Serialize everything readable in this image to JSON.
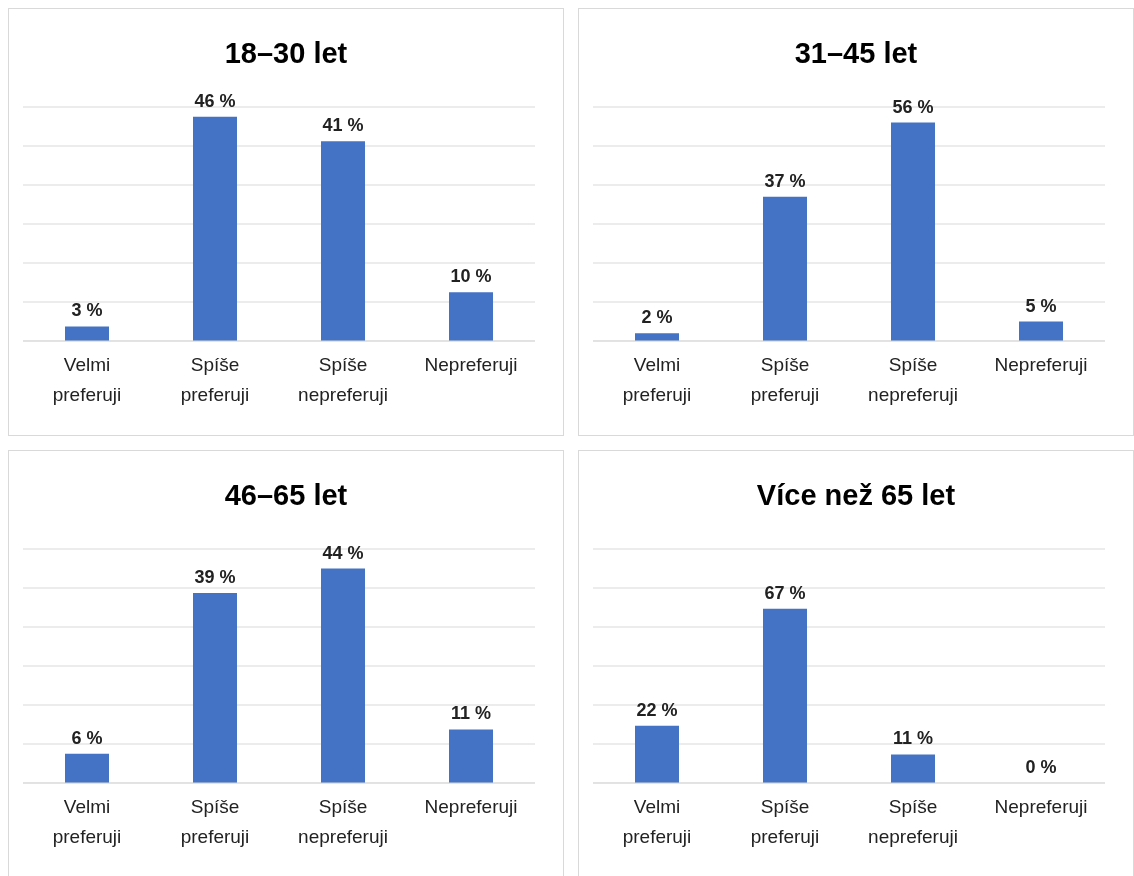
{
  "chart_data": [
    {
      "type": "bar",
      "title": "18–30 let",
      "categories": [
        "Velmi preferuji",
        "Spíše preferuji",
        "Spíše nepreferuji",
        "Nepreferuji"
      ],
      "values": [
        3,
        46,
        41,
        10
      ],
      "value_labels": [
        "3 %",
        "46 %",
        "41 %",
        "10 %"
      ],
      "color": "#4472c4",
      "grid": "y",
      "tick_labels": "x",
      "legend": false
    },
    {
      "type": "bar",
      "title": "31–45 let",
      "categories": [
        "Velmi preferuji",
        "Spíše preferuji",
        "Spíše nepreferuji",
        "Nepreferuji"
      ],
      "values": [
        2,
        37,
        56,
        5
      ],
      "value_labels": [
        "2 %",
        "37 %",
        "56 %",
        "5 %"
      ],
      "color": "#4472c4",
      "grid": "y",
      "tick_labels": "x",
      "legend": false
    },
    {
      "type": "bar",
      "title": "46–65 let",
      "categories": [
        "Velmi preferuji",
        "Spíše preferuji",
        "Spíše nepreferuji",
        "Nepreferuji"
      ],
      "values": [
        6,
        39,
        44,
        11
      ],
      "value_labels": [
        "6 %",
        "39 %",
        "44 %",
        "11 %"
      ],
      "color": "#4472c4",
      "grid": "y",
      "tick_labels": "x",
      "legend": false
    },
    {
      "type": "bar",
      "title": "Více než 65 let",
      "categories": [
        "Velmi preferuji",
        "Spíše preferuji",
        "Spíše nepreferuji",
        "Nepreferuji"
      ],
      "values": [
        22,
        67,
        11,
        0
      ],
      "value_labels": [
        "22 %",
        "67 %",
        "11 %",
        "0 %"
      ],
      "color": "#4472c4",
      "grid": "y",
      "tick_labels": "x",
      "legend": false
    }
  ]
}
